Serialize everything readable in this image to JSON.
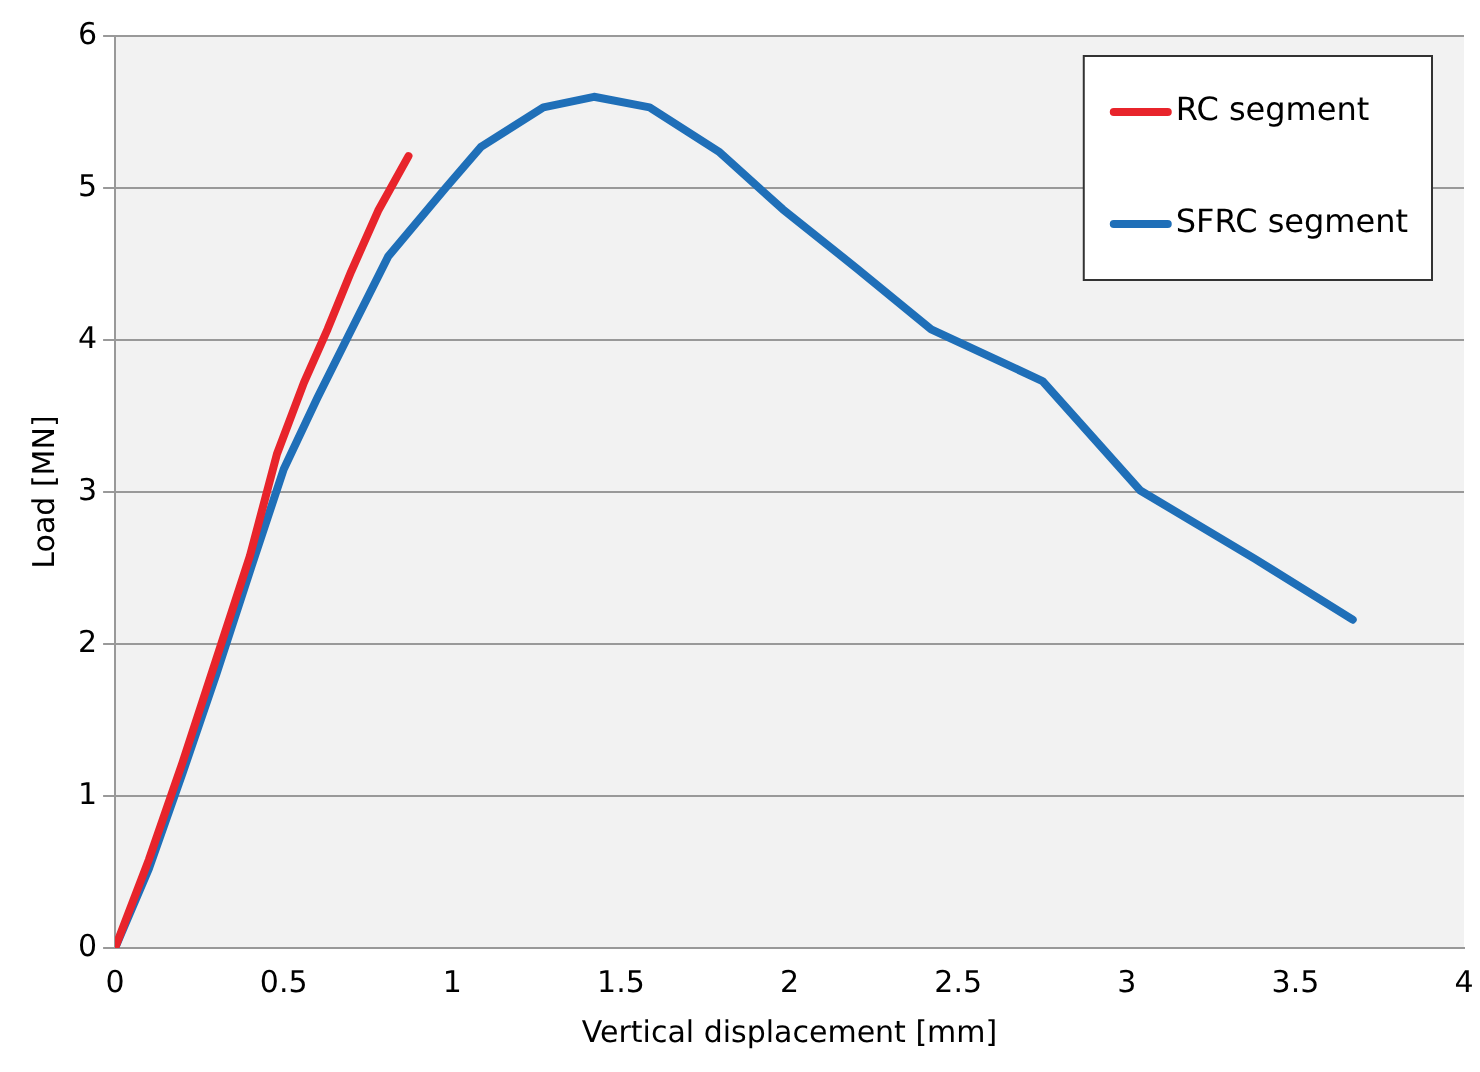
{
  "chart_data": {
    "type": "line",
    "xlabel": "Vertical displacement [mm]",
    "ylabel": "Load [MN]",
    "xlim": [
      0,
      4
    ],
    "xticks": [
      0,
      0.5,
      1,
      1.5,
      2,
      2.5,
      3,
      3.5,
      4
    ],
    "ylim": [
      0,
      6
    ],
    "yticks": [
      0,
      1,
      2,
      3,
      4,
      5,
      6
    ],
    "grid": "y",
    "legend": "top right",
    "marker": "none",
    "line_style": "solid",
    "series": [
      {
        "name": "RC segment",
        "color": "#e8242b",
        "x": [
          0,
          0.1,
          0.2,
          0.3,
          0.4,
          0.48,
          0.56,
          0.63,
          0.7,
          0.78,
          0.87
        ],
        "values": [
          0,
          0.58,
          1.22,
          1.9,
          2.58,
          3.25,
          3.72,
          4.07,
          4.45,
          4.85,
          5.21
        ]
      },
      {
        "name": "SFRC segment",
        "color": "#1f6fb8",
        "x": [
          0,
          0.1,
          0.2,
          0.3,
          0.4,
          0.5,
          0.6,
          0.69,
          0.81,
          0.98,
          1.085,
          1.27,
          1.42,
          1.585,
          1.79,
          1.98,
          2.2,
          2.42,
          2.75,
          3.04,
          3.38,
          3.67
        ],
        "values": [
          0,
          0.52,
          1.15,
          1.8,
          2.48,
          3.15,
          3.62,
          4.02,
          4.55,
          5.0,
          5.27,
          5.53,
          5.6,
          5.53,
          5.24,
          4.86,
          4.47,
          4.07,
          3.73,
          3.01,
          2.56,
          2.16
        ]
      }
    ]
  }
}
